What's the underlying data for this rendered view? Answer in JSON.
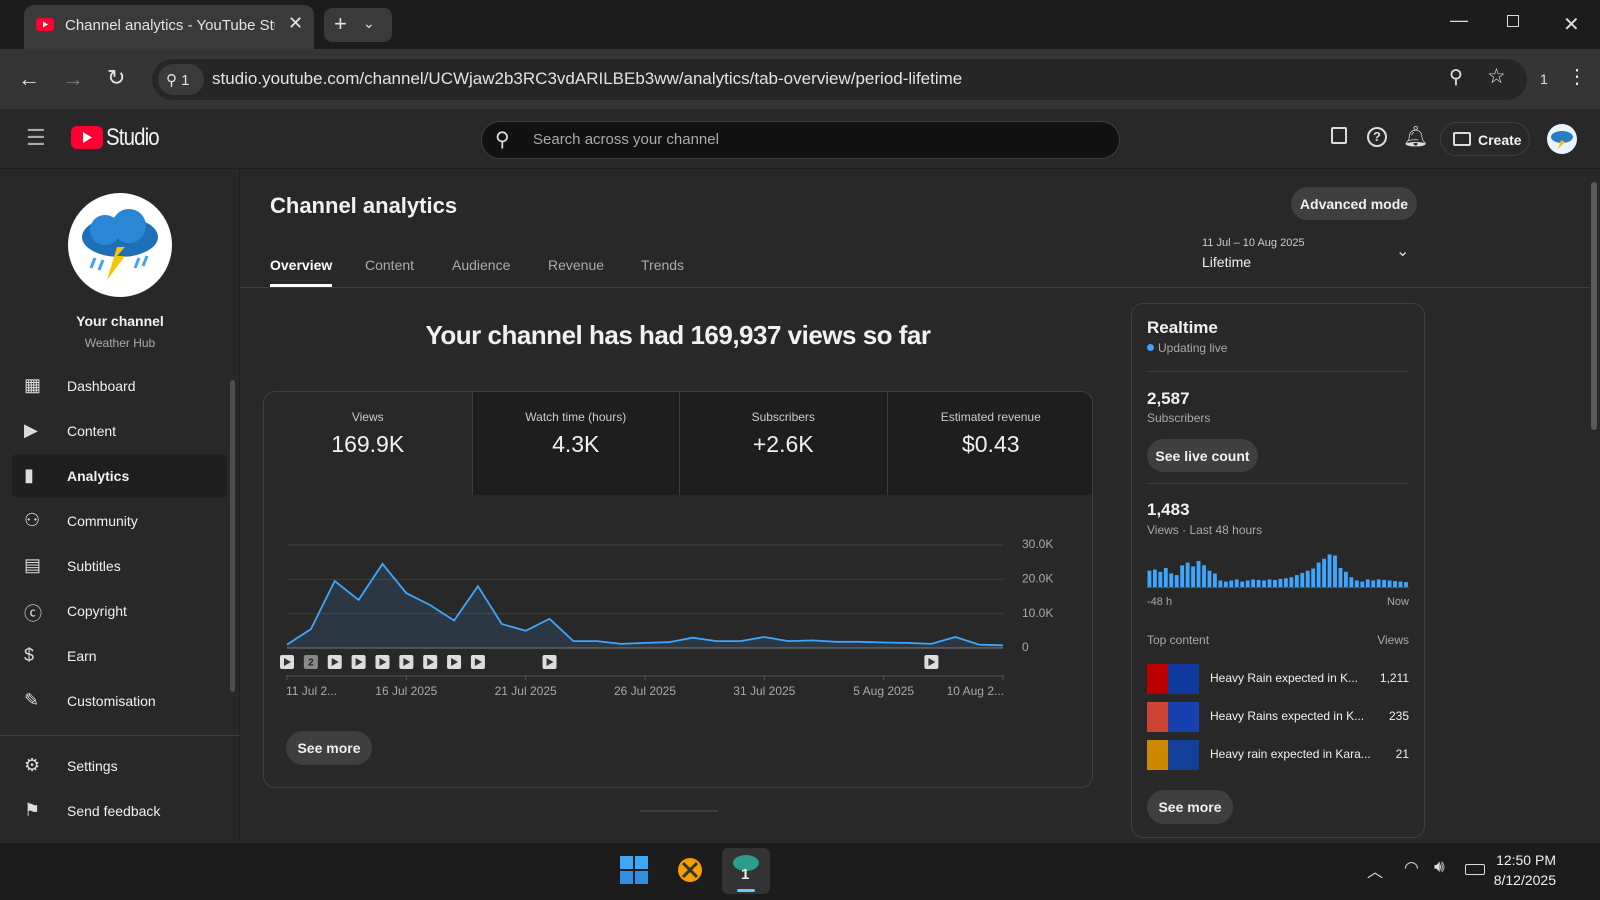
{
  "browser": {
    "tab_title": "Channel analytics - YouTube Stu",
    "address": "studio.youtube.com/channel/UCWjaw2b3RC3vdARILBEb3ww/analytics/tab-overview/period-lifetime",
    "site_info_count": "1",
    "extensions_count": "1"
  },
  "header": {
    "logo": "Studio",
    "search_placeholder": "Search across your channel",
    "create": "Create"
  },
  "sidebar": {
    "channel_label": "Your channel",
    "channel_name": "Weather Hub",
    "nav": [
      "Dashboard",
      "Content",
      "Analytics",
      "Community",
      "Subtitles",
      "Copyright",
      "Earn",
      "Customisation"
    ],
    "active": "Analytics",
    "footer_nav": [
      "Settings",
      "Send feedback"
    ]
  },
  "page": {
    "title": "Channel analytics",
    "advanced_mode": "Advanced mode",
    "tabs": [
      "Overview",
      "Content",
      "Audience",
      "Revenue",
      "Trends"
    ],
    "active_tab": "Overview",
    "date_range": "11 Jul – 10 Aug 2025",
    "period": "Lifetime",
    "headline": "Your channel has had 169,937 views so far",
    "metrics": [
      {
        "label": "Views",
        "value": "169.9K"
      },
      {
        "label": "Watch time (hours)",
        "value": "4.3K"
      },
      {
        "label": "Subscribers",
        "value": "+2.6K"
      },
      {
        "label": "Estimated revenue",
        "value": "$0.43"
      }
    ],
    "see_more": "See more"
  },
  "views_chart": {
    "type": "line",
    "color": "#3ea6ff",
    "categories": [
      "11 Jul 2...",
      null,
      null,
      null,
      null,
      "16 Jul 2025",
      null,
      null,
      null,
      null,
      "21 Jul 2025",
      null,
      null,
      null,
      null,
      "26 Jul 2025",
      null,
      null,
      null,
      null,
      "31 Jul 2025",
      null,
      null,
      null,
      null,
      "5 Aug 2025",
      null,
      null,
      null,
      null,
      "10 Aug 2..."
    ],
    "values": [
      1000,
      5500,
      19500,
      14000,
      24500,
      16000,
      12500,
      8000,
      18000,
      7000,
      5000,
      8500,
      2000,
      2000,
      1200,
      1500,
      1700,
      3000,
      2000,
      2000,
      3200,
      2000,
      2200,
      1800,
      1800,
      1600,
      1500,
      1200,
      3200,
      1000,
      800
    ],
    "ylim": [
      0,
      30000
    ],
    "yticks": [
      0,
      {
        "value": 10000,
        "label": "10.0K"
      },
      {
        "value": 20000,
        "label": "20.0K"
      },
      {
        "value": 30000,
        "label": "30.0K"
      }
    ],
    "grid": true,
    "grouped_uploads": "2"
  },
  "realtime": {
    "title": "Realtime",
    "status": "Updating live",
    "subscribers": "2,587",
    "subscribers_label": "Subscribers",
    "live_count_button": "See live count",
    "views": "1,483",
    "views_label": "Views · Last 48 hours",
    "chart": {
      "type": "bar",
      "color": "#3ea6ff",
      "ylim": [
        0,
        70
      ],
      "x_start_label": "-48 h",
      "x_end_label": "Now",
      "values": [
        30,
        32,
        28,
        35,
        25,
        22,
        40,
        45,
        38,
        48,
        40,
        30,
        25,
        12,
        10,
        12,
        14,
        10,
        12,
        14,
        13,
        12,
        14,
        13,
        15,
        16,
        18,
        22,
        26,
        30,
        34,
        45,
        52,
        60,
        58,
        35,
        28,
        18,
        12,
        10,
        14,
        12,
        14,
        13,
        12,
        11,
        10,
        9
      ]
    },
    "top_content_label": "Top content",
    "top_content_views_label": "Views",
    "top_content": [
      {
        "title": "Heavy Rain expected in K...",
        "views": "1,211"
      },
      {
        "title": "Heavy Rains expected in K...",
        "views": "235"
      },
      {
        "title": "Heavy rain expected in Kara...",
        "views": "21"
      }
    ],
    "see_more": "See more"
  },
  "taskbar": {
    "badge": "1",
    "time": "12:50 PM",
    "date": "8/12/2025"
  }
}
